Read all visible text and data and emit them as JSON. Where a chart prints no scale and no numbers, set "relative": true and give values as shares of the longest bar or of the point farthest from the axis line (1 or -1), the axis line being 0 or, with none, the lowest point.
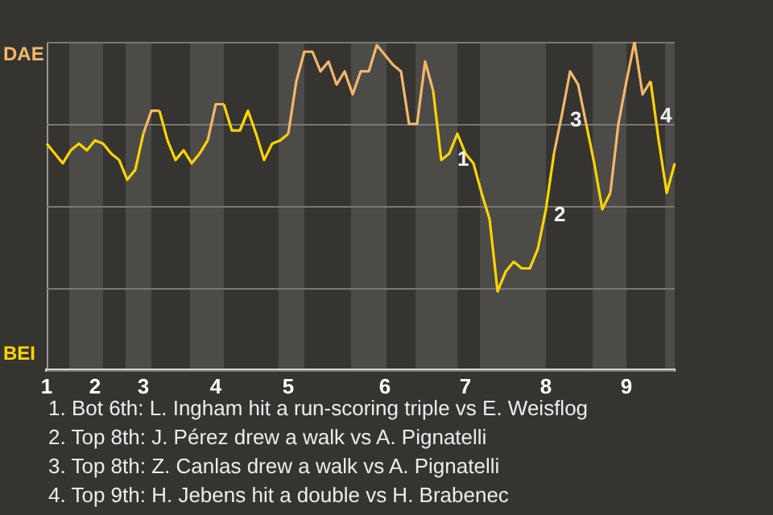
{
  "chart_data": {
    "type": "line",
    "relative": true,
    "categories": [
      "1",
      null,
      null,
      null,
      null,
      null,
      "2",
      null,
      null,
      null,
      null,
      null,
      "3",
      null,
      null,
      null,
      null,
      null,
      null,
      null,
      null,
      "4",
      null,
      null,
      null,
      null,
      null,
      null,
      null,
      null,
      "5",
      null,
      null,
      null,
      null,
      null,
      null,
      null,
      null,
      null,
      null,
      null,
      "6",
      null,
      null,
      null,
      null,
      null,
      null,
      null,
      null,
      null,
      "7",
      null,
      null,
      null,
      null,
      null,
      null,
      null,
      null,
      null,
      "8",
      null,
      null,
      null,
      null,
      null,
      null,
      null,
      null,
      null,
      "9",
      null,
      null,
      null,
      null,
      null,
      null
    ],
    "grid": "y",
    "legend": false,
    "marker": "none",
    "line_style": "solid",
    "series": [
      {
        "color": "#ffd500",
        "values": [
          0.69,
          0.66,
          0.63,
          0.67,
          0.69,
          0.67,
          0.7,
          0.69,
          0.66,
          0.64,
          0.58,
          0.61,
          0.72,
          null,
          0.79,
          0.7,
          0.64,
          0.67,
          0.63,
          0.66,
          0.7,
          null,
          0.81,
          0.73,
          0.73,
          0.79,
          0.72,
          0.64,
          0.69,
          0.7,
          0.72,
          null,
          null,
          null,
          null,
          null,
          null,
          null,
          null,
          null,
          null,
          null,
          null,
          null,
          null,
          null,
          null,
          null,
          0.85,
          0.64,
          0.66,
          0.72,
          0.66,
          0.63,
          0.54,
          0.46,
          0.24,
          0.3,
          0.33,
          0.31,
          0.31,
          0.37,
          0.49,
          0.66,
          null,
          null,
          null,
          0.75,
          0.63,
          0.49,
          0.54,
          null,
          null,
          null,
          null,
          0.88,
          0.7,
          0.54,
          0.63
        ]
      },
      {
        "color": "#f5b86a",
        "values": [
          null,
          null,
          null,
          null,
          null,
          null,
          null,
          null,
          null,
          null,
          null,
          null,
          0.72,
          0.79,
          0.79,
          null,
          null,
          null,
          null,
          null,
          0.7,
          0.81,
          0.81,
          null,
          0.73,
          0.79,
          null,
          null,
          null,
          null,
          0.72,
          0.88,
          0.97,
          0.97,
          0.91,
          0.94,
          0.87,
          0.91,
          0.84,
          0.91,
          0.91,
          0.99,
          0.96,
          0.93,
          0.91,
          0.75,
          0.75,
          0.94,
          0.85,
          null,
          null,
          null,
          null,
          null,
          null,
          null,
          null,
          null,
          null,
          null,
          null,
          null,
          null,
          0.66,
          0.78,
          0.91,
          0.87,
          0.75,
          null,
          null,
          0.54,
          0.75,
          0.88,
          1,
          0.84,
          0.88,
          null,
          null,
          null
        ]
      }
    ],
    "annotations": [
      "DAE",
      "BEI",
      "1",
      "2",
      "3",
      "4",
      "1. Bot 6th: L. Ingham hit a run-scoring triple vs E. Weisflog",
      "2. Top 8th: J. Pérez drew a walk vs A. Pignatelli",
      "3. Top 8th: Z. Canlas drew a walk vs A. Pignatelli",
      "4. Top 9th: H. Jebens hit a double vs H. Brabenec"
    ]
  }
}
